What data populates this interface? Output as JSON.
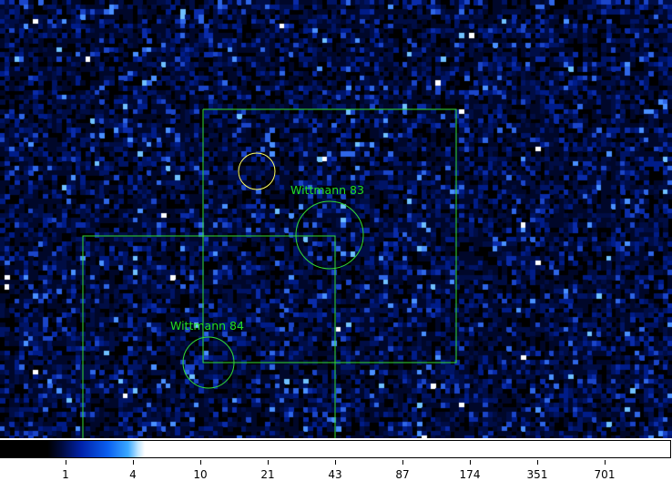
{
  "viewer": {
    "image": {
      "background_color": "#000000",
      "colormap": "blue-white (ds9 style)",
      "regions": [
        {
          "type": "box",
          "name": "field-box-upper",
          "color": "#33dd33"
        },
        {
          "type": "box",
          "name": "field-box-lower",
          "color": "#33dd33"
        },
        {
          "type": "circle",
          "name": "source-circle",
          "color": "#ffff66"
        },
        {
          "type": "circle",
          "name": "wittmann-83-circle",
          "color": "#33dd33",
          "label": "Wittmann 83"
        },
        {
          "type": "circle",
          "name": "wittmann-84-circle",
          "color": "#33dd33",
          "label": "Wittmann 84"
        }
      ]
    },
    "colorbar": {
      "ticks": [
        "1",
        "4",
        "10",
        "21",
        "43",
        "87",
        "174",
        "351",
        "701"
      ]
    }
  }
}
